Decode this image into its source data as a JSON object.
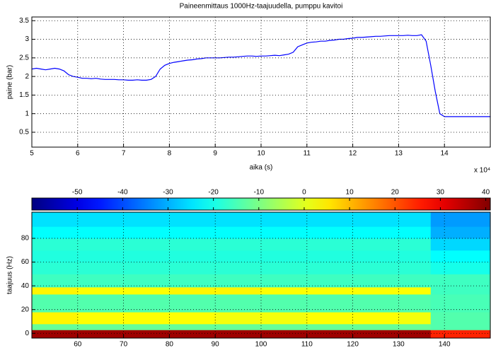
{
  "chart_data": [
    {
      "type": "line",
      "title": "Paineenmittaus 1000Hz-taajuudella, pumppu kavitoi",
      "xlabel": "aika (s)",
      "ylabel": "paine (bar)",
      "x_multiplier": "x 10⁴",
      "x": [
        5.0,
        5.1,
        5.2,
        5.3,
        5.4,
        5.5,
        5.6,
        5.7,
        5.8,
        5.9,
        6.0,
        6.1,
        6.2,
        6.3,
        6.4,
        6.5,
        6.6,
        6.7,
        6.8,
        6.9,
        7.0,
        7.1,
        7.2,
        7.3,
        7.4,
        7.5,
        7.6,
        7.7,
        7.8,
        7.9,
        8.0,
        8.1,
        8.2,
        8.3,
        8.4,
        8.5,
        8.6,
        8.7,
        8.8,
        8.9,
        9.0,
        9.1,
        9.2,
        9.3,
        9.4,
        9.5,
        9.6,
        9.7,
        9.8,
        9.9,
        10.0,
        10.1,
        10.2,
        10.3,
        10.4,
        10.5,
        10.6,
        10.7,
        10.8,
        10.9,
        11.0,
        11.1,
        11.2,
        11.3,
        11.4,
        11.5,
        11.6,
        11.7,
        11.8,
        11.9,
        12.0,
        12.1,
        12.2,
        12.3,
        12.4,
        12.5,
        12.6,
        12.7,
        12.8,
        12.9,
        13.0,
        13.1,
        13.2,
        13.3,
        13.4,
        13.5,
        13.6,
        13.7,
        13.8,
        13.9,
        14.0,
        14.1,
        14.2,
        14.3,
        14.4,
        14.5,
        14.6,
        14.7,
        14.8,
        14.9,
        15.0
      ],
      "values": [
        2.2,
        2.22,
        2.2,
        2.18,
        2.2,
        2.22,
        2.2,
        2.15,
        2.05,
        2.0,
        1.98,
        1.95,
        1.95,
        1.94,
        1.95,
        1.93,
        1.92,
        1.92,
        1.92,
        1.91,
        1.91,
        1.9,
        1.9,
        1.91,
        1.9,
        1.9,
        1.92,
        2.0,
        2.2,
        2.3,
        2.35,
        2.38,
        2.4,
        2.42,
        2.44,
        2.45,
        2.47,
        2.48,
        2.5,
        2.5,
        2.5,
        2.5,
        2.51,
        2.52,
        2.52,
        2.53,
        2.54,
        2.55,
        2.55,
        2.54,
        2.55,
        2.55,
        2.56,
        2.57,
        2.56,
        2.58,
        2.6,
        2.65,
        2.8,
        2.85,
        2.9,
        2.92,
        2.93,
        2.95,
        2.95,
        2.97,
        2.98,
        3.0,
        3.0,
        3.02,
        3.03,
        3.05,
        3.05,
        3.06,
        3.07,
        3.08,
        3.08,
        3.09,
        3.1,
        3.1,
        3.1,
        3.1,
        3.11,
        3.1,
        3.1,
        3.12,
        2.95,
        2.3,
        1.6,
        1.0,
        0.92,
        0.92,
        0.92,
        0.92,
        0.92,
        0.92,
        0.92,
        0.92,
        0.92,
        0.92,
        0.92
      ],
      "color": "#0000ff",
      "xlim": [
        5,
        15
      ],
      "ylim": [
        0.1,
        3.6
      ],
      "xticks": [
        5,
        6,
        7,
        8,
        9,
        10,
        11,
        12,
        13,
        14
      ],
      "yticks": [
        0.5,
        1,
        1.5,
        2,
        2.5,
        3,
        3.5
      ],
      "grid": true
    },
    {
      "type": "heatmap",
      "ylabel": "taajuus (Hz)",
      "x_edges": [
        50,
        60,
        70,
        80,
        90,
        100,
        110,
        120,
        130,
        137,
        150
      ],
      "y_edges": [
        -4,
        3,
        8,
        18,
        33,
        39,
        50,
        60,
        70,
        80,
        90,
        102
      ],
      "z": [
        [
          38,
          38,
          38,
          38,
          38,
          38,
          38,
          38,
          38,
          25
        ],
        [
          -12,
          -12,
          -12,
          -12,
          -12,
          -12,
          -12,
          -12,
          -12,
          -14
        ],
        [
          4,
          3,
          3,
          3,
          2,
          2,
          3,
          3,
          2,
          -14
        ],
        [
          -14,
          -14,
          -14,
          -14,
          -14,
          -14,
          -14,
          -14,
          -14,
          -15
        ],
        [
          4,
          3,
          3,
          4,
          4,
          3,
          3,
          3,
          3,
          -16
        ],
        [
          -16,
          -16,
          -16,
          -16,
          -16,
          -16,
          -16,
          -16,
          -16,
          -16
        ],
        [
          -18,
          -18,
          -18,
          -18,
          -18,
          -18,
          -18,
          -18,
          -18,
          -20
        ],
        [
          -19,
          -19,
          -19,
          -19,
          -19,
          -19,
          -19,
          -19,
          -19,
          -22
        ],
        [
          -18,
          -18,
          -18,
          -18,
          -18,
          -18,
          -18,
          -18,
          -18,
          -26
        ],
        [
          -22,
          -22,
          -22,
          -22,
          -22,
          -22,
          -22,
          -22,
          -22,
          -30
        ],
        [
          -25,
          -25,
          -25,
          -25,
          -25,
          -25,
          -25,
          -25,
          -25,
          -32
        ]
      ],
      "xlim": [
        50,
        150
      ],
      "ylim": [
        -4,
        102
      ],
      "xticks": [
        60,
        70,
        80,
        90,
        100,
        110,
        120,
        130,
        140
      ],
      "yticks": [
        0,
        20,
        40,
        60,
        80
      ],
      "grid": true,
      "colormap": "jet",
      "clim": [
        -60,
        41
      ],
      "colorbar_ticks": [
        -50,
        -40,
        -30,
        -20,
        -10,
        0,
        10,
        20,
        30,
        40
      ]
    }
  ]
}
